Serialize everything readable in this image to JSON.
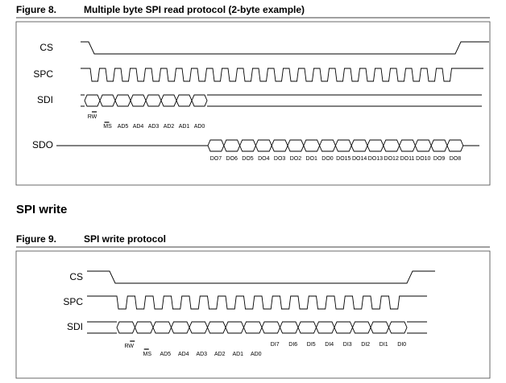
{
  "figure8": {
    "number": "Figure 8.",
    "title": "Multiple byte SPI read protocol (2-byte example)",
    "signals": [
      "CS",
      "SPC",
      "SDI",
      "SDO"
    ],
    "sdi_bits": [
      "RW",
      "MS",
      "AD5",
      "AD4",
      "AD3",
      "AD2",
      "AD1",
      "AD0"
    ],
    "sdo_bits": [
      "DO7",
      "DO6",
      "DO5",
      "DO4",
      "DO3",
      "DO2",
      "DO1",
      "DO0",
      "DO15",
      "DO14",
      "DO13",
      "DO12",
      "DO11",
      "DO10",
      "DO9",
      "DO8"
    ]
  },
  "section_heading": "SPI write",
  "figure9": {
    "number": "Figure 9.",
    "title": "SPI write protocol",
    "signals": [
      "CS",
      "SPC",
      "SDI"
    ],
    "sdi_bits": [
      "RW",
      "MS",
      "AD5",
      "AD4",
      "AD3",
      "AD2",
      "AD1",
      "AD0"
    ],
    "data_bits": [
      "DI7",
      "DI6",
      "DI5",
      "DI4",
      "DI3",
      "DI2",
      "DI1",
      "DI0"
    ]
  }
}
